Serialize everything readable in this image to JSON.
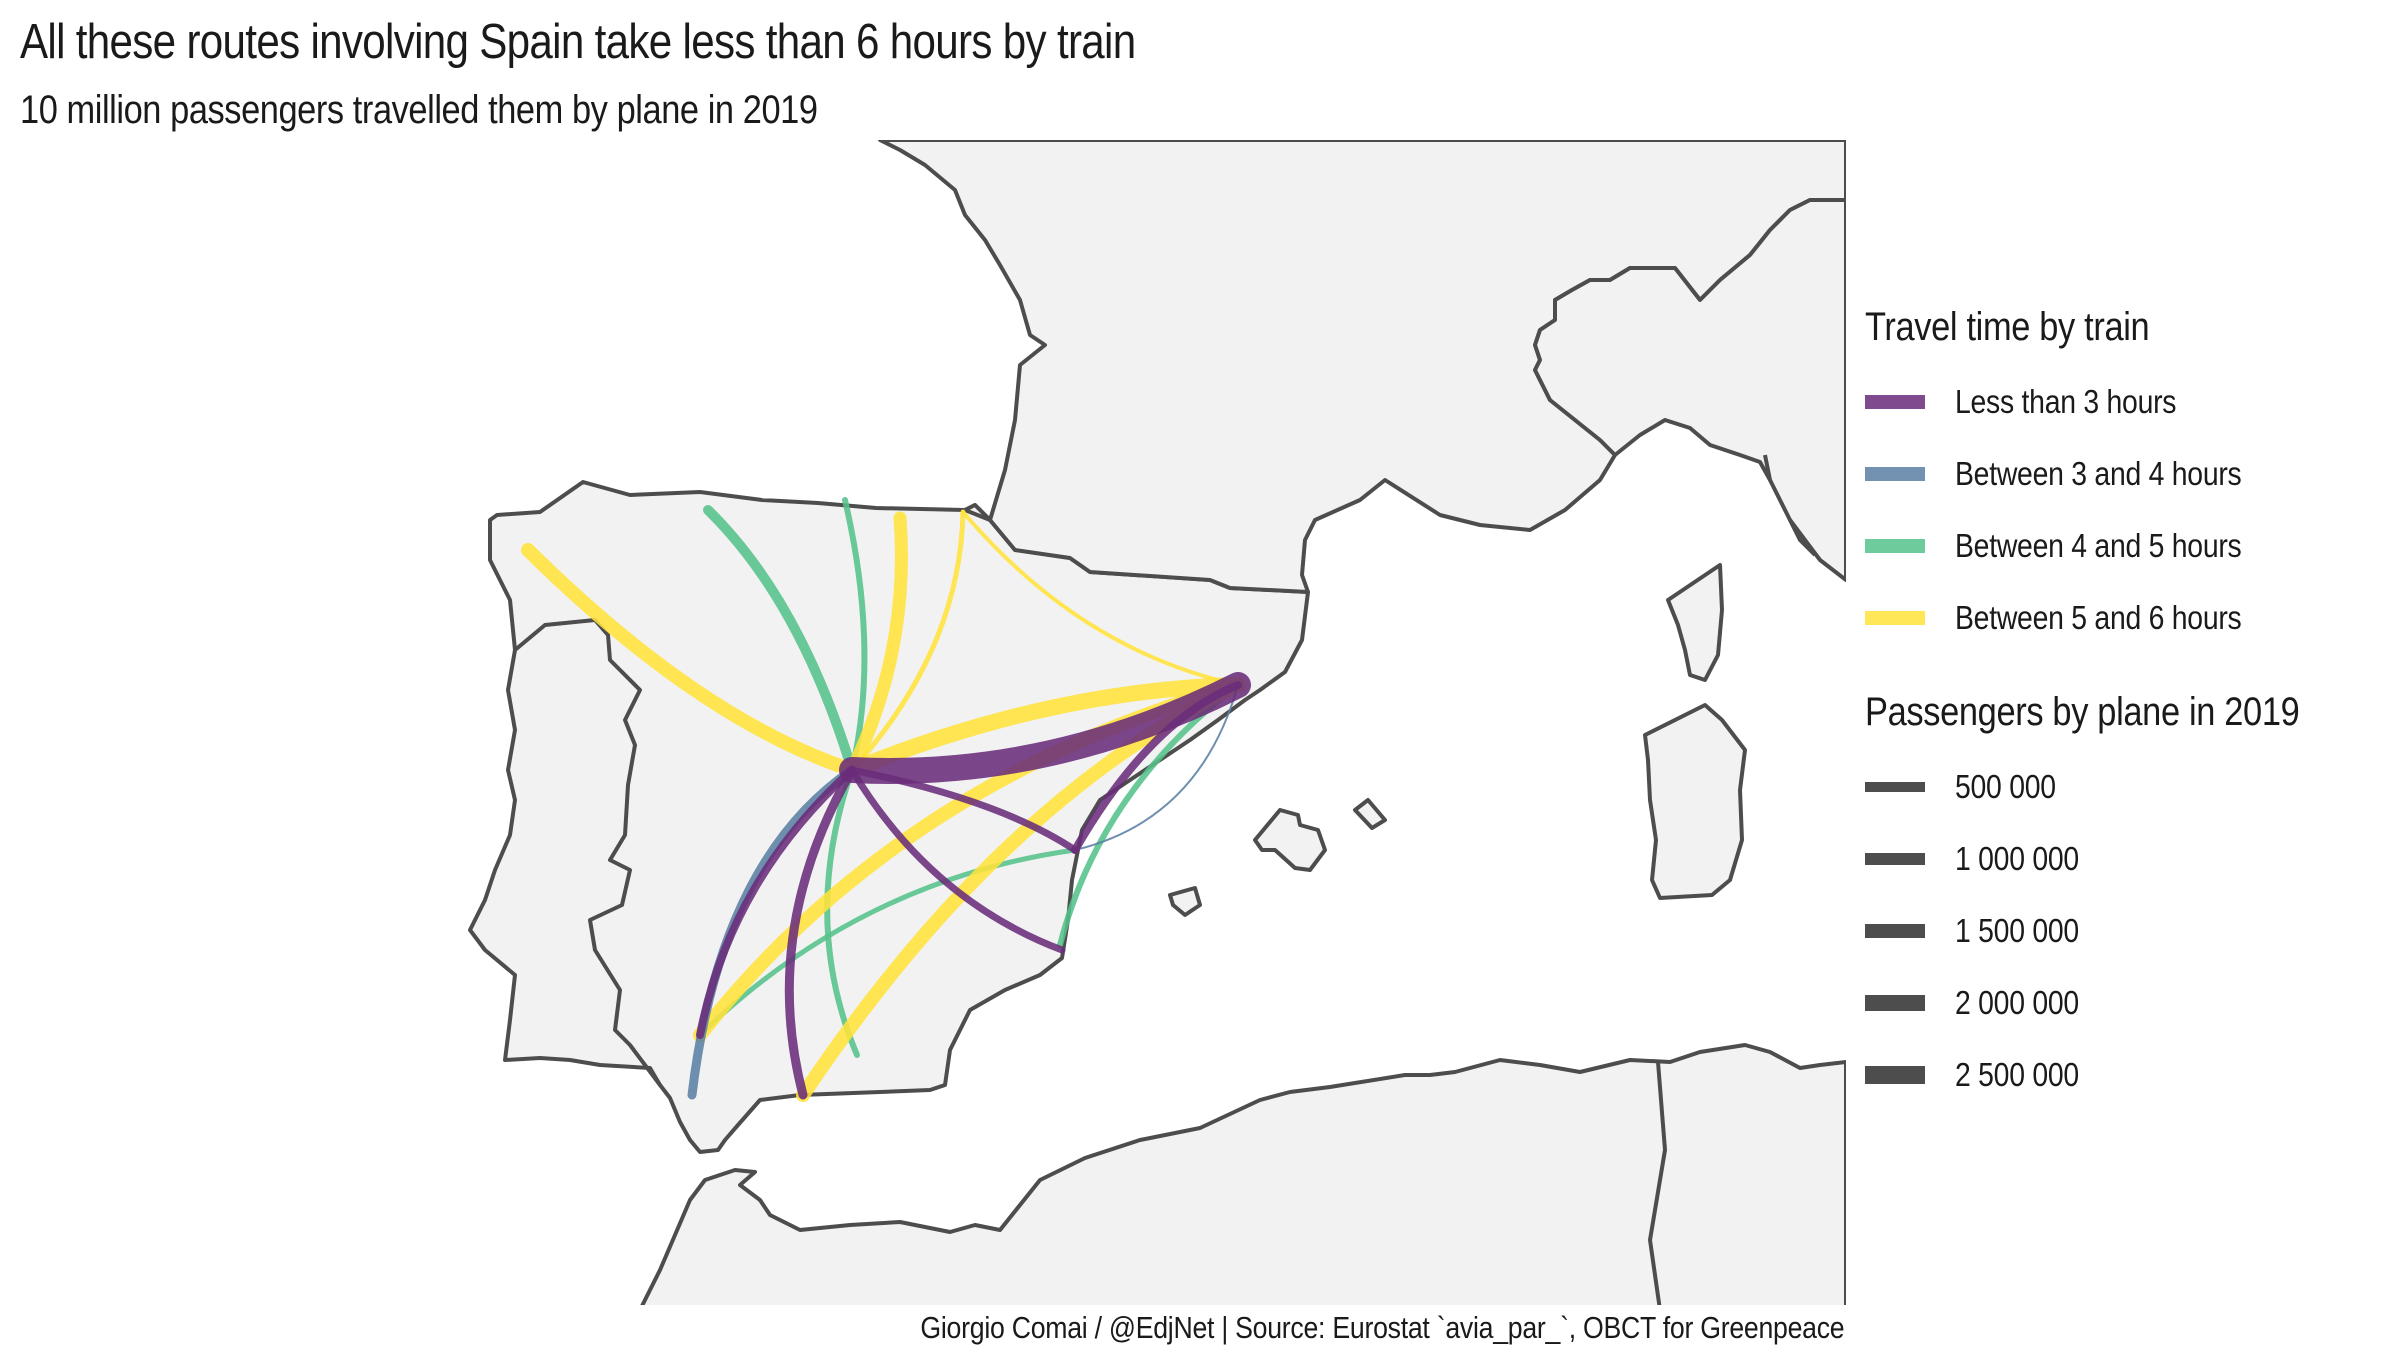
{
  "title": "All these routes involving Spain take less than 6 hours by train",
  "subtitle": "10 million passengers travelled them by plane in 2019",
  "caption": "Giorgio Comai / @EdjNet | Source: Eurostat `avia_par_`, OBCT for Greenpeace",
  "colors": {
    "less_than_3": "#6a2c7a",
    "between_3_4": "#5a7fa3",
    "between_4_5": "#55c28a",
    "between_5_6": "#ffe33a",
    "land": "#f2f2f2",
    "border": "#4d4d4d"
  },
  "legend": {
    "travel_time_title": "Travel time by train",
    "travel_time_items": [
      {
        "label": "Less than 3 hours",
        "color": "#6a2c7a"
      },
      {
        "label": "Between 3 and 4 hours",
        "color": "#5a7fa3"
      },
      {
        "label": "Between 4 and 5 hours",
        "color": "#55c28a"
      },
      {
        "label": "Between 5 and 6 hours",
        "color": "#ffe33a"
      }
    ],
    "passengers_title": "Passengers by plane in 2019",
    "passengers_items": [
      {
        "label": "500 000",
        "value": 500000
      },
      {
        "label": "1 000 000",
        "value": 1000000
      },
      {
        "label": "1 500 000",
        "value": 1500000
      },
      {
        "label": "2 000 000",
        "value": 2000000
      },
      {
        "label": "2 500 000",
        "value": 2500000
      }
    ]
  }
}
